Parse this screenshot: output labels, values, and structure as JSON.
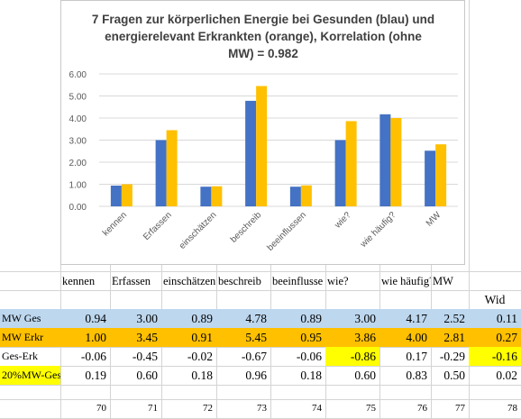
{
  "chart_data": {
    "type": "bar",
    "title_lines": [
      "7 Fragen zur körperlichen Energie bei Gesunden (blau) und",
      "energierelevant Erkrankten (orange), Korrelation (ohne",
      "MW) =  0.982"
    ],
    "categories": [
      "kennen",
      "Erfassen",
      "einschätzen",
      "beschreib",
      "beeinflussen",
      "wie?",
      "wie häufig?",
      "MW"
    ],
    "series": [
      {
        "values": [
          0.94,
          3.0,
          0.89,
          4.78,
          0.89,
          3.0,
          4.17,
          2.52
        ],
        "color": "#4472c4"
      },
      {
        "values": [
          1.0,
          3.45,
          0.91,
          5.45,
          0.95,
          3.86,
          4.0,
          2.81
        ],
        "color": "#ffc000"
      }
    ],
    "y_ticks": [
      "0.00",
      "1.00",
      "2.00",
      "3.00",
      "4.00",
      "5.00",
      "6.00"
    ],
    "ylim": [
      0,
      6
    ],
    "grid": true
  },
  "table": {
    "headers": [
      "kennen",
      "Erfassen",
      "einschätzen",
      "beschreib",
      "beeinflusse",
      "wie?",
      "wie häufig?",
      "MW"
    ],
    "extra_header": "Wid",
    "rows": [
      {
        "label": "MW Ges",
        "values": [
          "0.94",
          "3.00",
          "0.89",
          "4.78",
          "0.89",
          "3.00",
          "4.17",
          "2.52",
          "0.11"
        ]
      },
      {
        "label": "MW Erkr",
        "values": [
          "1.00",
          "3.45",
          "0.91",
          "5.45",
          "0.95",
          "3.86",
          "4.00",
          "2.81",
          "0.27"
        ]
      },
      {
        "label": "Ges-Erk",
        "values": [
          "-0.06",
          "-0.45",
          "-0.02",
          "-0.67",
          "-0.06",
          "-0.86",
          "0.17",
          "-0.29",
          "-0.16"
        ]
      },
      {
        "label": "20%MW-Ges",
        "values": [
          "0.19",
          "0.60",
          "0.18",
          "0.96",
          "0.18",
          "0.60",
          "0.83",
          "0.50",
          "0.02"
        ]
      }
    ],
    "footer": [
      "70",
      "71",
      "72",
      "73",
      "74",
      "75",
      "76",
      "77",
      "78"
    ]
  }
}
